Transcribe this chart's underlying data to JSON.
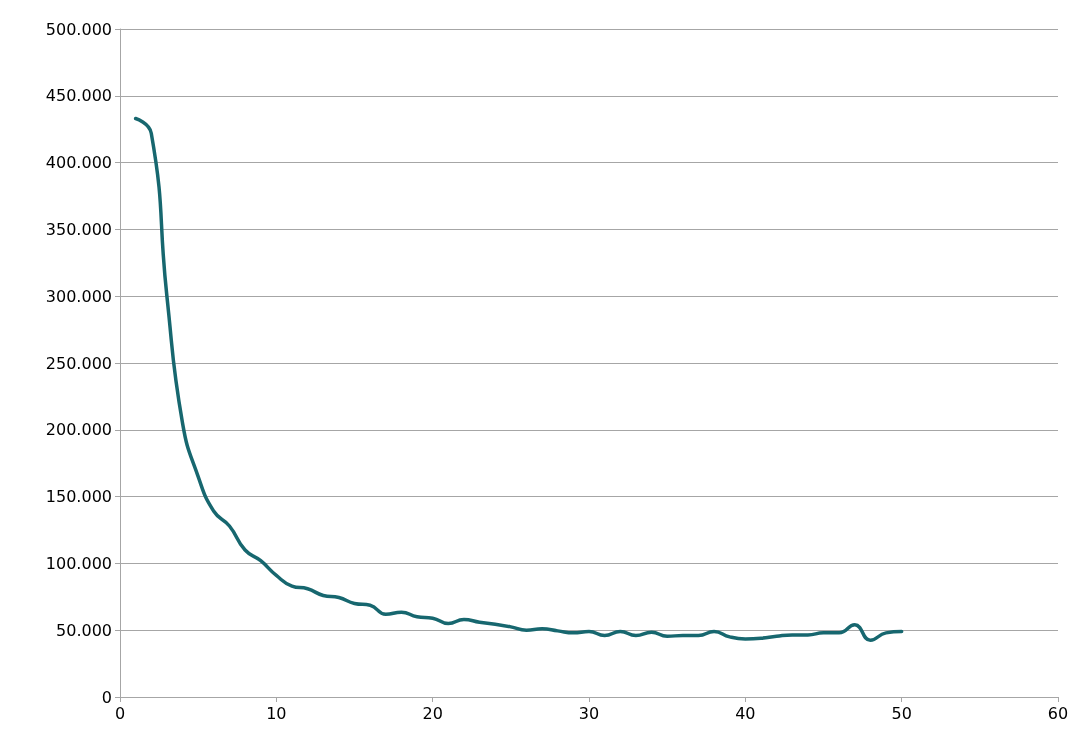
{
  "chart_data": {
    "type": "line",
    "x": [
      1,
      2,
      3,
      4,
      5,
      6,
      7,
      8,
      9,
      10,
      11,
      12,
      13,
      14,
      15,
      16,
      17,
      18,
      19,
      20,
      21,
      22,
      23,
      24,
      25,
      26,
      27,
      28,
      29,
      30,
      31,
      32,
      33,
      34,
      35,
      36,
      37,
      38,
      39,
      40,
      41,
      42,
      43,
      44,
      45,
      46,
      47,
      48,
      49,
      50
    ],
    "series": [
      {
        "color": "#17676f",
        "values": [
          433000,
          422000,
          300000,
          205000,
          165000,
          139000,
          128000,
          110000,
          102000,
          91000,
          83000,
          81000,
          76000,
          74500,
          70000,
          68700,
          62000,
          63500,
          60000,
          59000,
          55000,
          58000,
          56000,
          54500,
          52500,
          50000,
          51000,
          49500,
          48000,
          49000,
          46000,
          49000,
          46000,
          48500,
          45500,
          46000,
          46000,
          49000,
          45000,
          43500,
          44000,
          45500,
          46500,
          46500,
          48000,
          48000,
          54000,
          42500,
          48000,
          49000
        ]
      }
    ],
    "xlim": [
      0,
      60
    ],
    "xticks": [
      0,
      10,
      20,
      30,
      40,
      50,
      60
    ],
    "ylim": [
      0,
      500000
    ],
    "yticks": [
      0,
      {
        "value": 50000,
        "label": "50.000"
      },
      {
        "value": 100000,
        "label": "100.000"
      },
      {
        "value": 150000,
        "label": "150.000"
      },
      {
        "value": 200000,
        "label": "200.000"
      },
      {
        "value": 250000,
        "label": "250.000"
      },
      {
        "value": 300000,
        "label": "300.000"
      },
      {
        "value": 350000,
        "label": "350.000"
      },
      {
        "value": 400000,
        "label": "400.000"
      },
      {
        "value": 450000,
        "label": "450.000"
      },
      {
        "value": 500000,
        "label": "500.000"
      }
    ],
    "grid": "y",
    "marker": "none",
    "line_style": "solid"
  }
}
